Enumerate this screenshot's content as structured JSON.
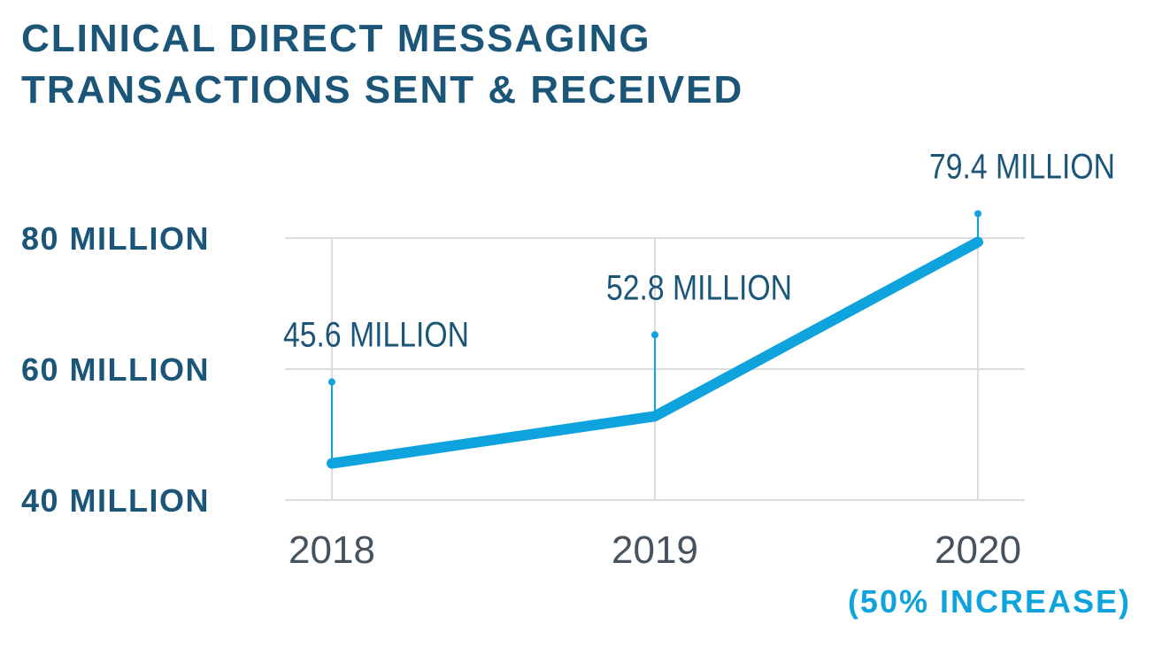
{
  "chart_data": {
    "type": "line",
    "title": "CLINICAL DIRECT MESSAGING TRANSACTIONS SENT & RECEIVED",
    "categories": [
      "2018",
      "2019",
      "2020"
    ],
    "values": [
      45.6,
      52.8,
      79.4
    ],
    "value_labels": [
      "45.6 MILLION",
      "52.8 MILLION",
      "79.4 MILLION"
    ],
    "color": "#0ea3dd",
    "ylim": [
      40,
      80
    ],
    "yticks": [
      {
        "value": 40,
        "label": "40 MILLION"
      },
      {
        "value": 60,
        "label": "60 MILLION"
      },
      {
        "value": 80,
        "label": "80 MILLION"
      }
    ],
    "grid": true,
    "annotation": "(50% INCREASE)"
  }
}
